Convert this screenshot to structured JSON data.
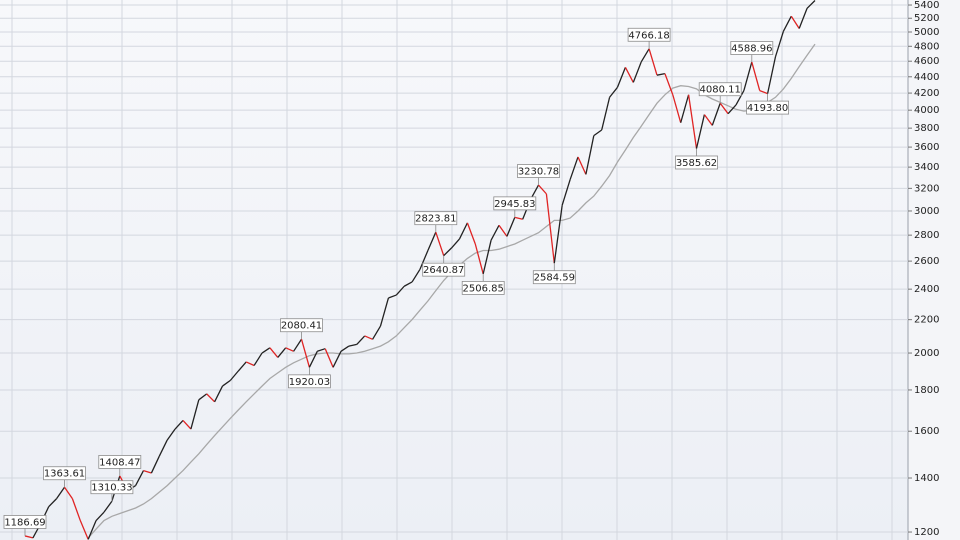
{
  "chart_data": {
    "type": "line",
    "log": true,
    "grid": true,
    "categories": [
      null,
      null,
      null,
      null,
      null,
      null,
      null,
      null,
      null,
      null,
      null,
      null,
      null,
      null,
      null,
      null,
      null,
      null,
      null,
      null,
      null,
      null,
      null,
      null,
      null,
      null,
      null,
      null,
      null,
      null,
      null,
      null,
      null,
      null,
      null,
      null,
      null,
      null,
      null,
      null,
      null,
      null,
      null,
      null,
      null,
      null,
      null,
      null,
      null,
      null,
      null,
      null,
      null,
      null,
      null,
      null,
      null,
      null,
      null,
      null,
      null,
      null,
      null,
      null,
      null,
      null,
      null,
      null,
      null,
      null,
      null,
      null,
      null,
      null,
      null,
      null,
      null,
      null,
      null,
      null,
      null,
      null,
      null,
      null,
      null,
      null,
      null,
      null,
      null,
      null,
      null,
      null,
      null,
      null,
      null,
      null,
      null,
      null,
      null,
      null,
      null
    ],
    "series": [
      {
        "color": "#222222",
        "down_color": "#e02424",
        "values": [
          1186.69,
          1180,
          1230,
          1290,
          1320,
          1363.61,
          1320,
          1240,
          1175,
          1240,
          1270,
          1310.33,
          1408.47,
          1350,
          1370,
          1430,
          1420,
          1490,
          1560,
          1610,
          1650,
          1610,
          1750,
          1780,
          1740,
          1820,
          1850,
          1900,
          1950,
          1930,
          2000,
          2030,
          1975,
          2030,
          2010,
          2080.41,
          1920.03,
          2010,
          2025,
          1920,
          2010,
          2040,
          2050,
          2100,
          2080,
          2160,
          2340,
          2360,
          2420,
          2450,
          2540,
          2680,
          2823.81,
          2640.87,
          2700,
          2770,
          2900,
          2730,
          2506.85,
          2760,
          2880,
          2790,
          2945.83,
          2930,
          3100,
          3230.78,
          3150,
          2584.59,
          3050,
          3280,
          3500,
          3330,
          3720,
          3780,
          4150,
          4270,
          4520,
          4330,
          4590,
          4766.18,
          4420,
          4440,
          4180,
          3860,
          4180,
          3585.62,
          3950,
          3830,
          4080.11,
          3960,
          4060,
          4230,
          4588.96,
          4230,
          4193.8,
          4660,
          5010,
          5230,
          5050,
          5350,
          5470
        ],
        "value_labels": [
          "1186.69",
          null,
          null,
          null,
          null,
          "1363.61",
          null,
          null,
          null,
          null,
          null,
          "1310.33",
          "1408.47",
          null,
          null,
          null,
          null,
          null,
          null,
          null,
          null,
          null,
          null,
          null,
          null,
          null,
          null,
          null,
          null,
          null,
          null,
          null,
          null,
          null,
          null,
          "2080.41",
          "1920.03",
          null,
          null,
          null,
          null,
          null,
          null,
          null,
          null,
          null,
          null,
          null,
          null,
          null,
          null,
          null,
          "2823.81",
          "2640.87",
          null,
          null,
          null,
          null,
          "2506.85",
          null,
          null,
          null,
          "2945.83",
          null,
          null,
          "3230.78",
          null,
          "2584.59",
          null,
          null,
          null,
          null,
          null,
          null,
          null,
          null,
          null,
          null,
          null,
          "4766.18",
          null,
          null,
          null,
          null,
          null,
          "3585.62",
          null,
          null,
          "4080.11",
          null,
          null,
          null,
          "4588.96",
          null,
          "4193.80",
          null,
          null,
          null,
          null,
          null,
          null
        ]
      },
      {
        "color": "#a8a8a8",
        "values": [
          null,
          null,
          null,
          null,
          null,
          null,
          null,
          null,
          1180,
          1210,
          1240,
          1255,
          1265,
          1275,
          1285,
          1300,
          1320,
          1345,
          1370,
          1400,
          1430,
          1465,
          1500,
          1540,
          1580,
          1620,
          1660,
          1700,
          1740,
          1780,
          1820,
          1860,
          1890,
          1920,
          1945,
          1965,
          1985,
          1995,
          2000,
          2000,
          1995,
          1995,
          2000,
          2010,
          2025,
          2040,
          2065,
          2100,
          2150,
          2200,
          2260,
          2320,
          2390,
          2460,
          2520,
          2570,
          2620,
          2660,
          2680,
          2680,
          2690,
          2710,
          2730,
          2760,
          2790,
          2820,
          2870,
          2920,
          2920,
          2940,
          3000,
          3070,
          3130,
          3220,
          3320,
          3450,
          3570,
          3700,
          3820,
          3950,
          4080,
          4180,
          4260,
          4290,
          4280,
          4250,
          4180,
          4130,
          4090,
          4050,
          4010,
          3990,
          4000,
          4050,
          4090,
          4150,
          4250,
          4380,
          4530,
          4680,
          4830
        ]
      }
    ],
    "ylim": [
      1173,
      5478
    ],
    "yticks": [
      1200,
      1400,
      1600,
      1800,
      2000,
      2200,
      2400,
      2600,
      2800,
      3000,
      3200,
      3400,
      3600,
      3800,
      4000,
      4200,
      4400,
      4600,
      4800,
      5000,
      5200,
      5400
    ]
  }
}
